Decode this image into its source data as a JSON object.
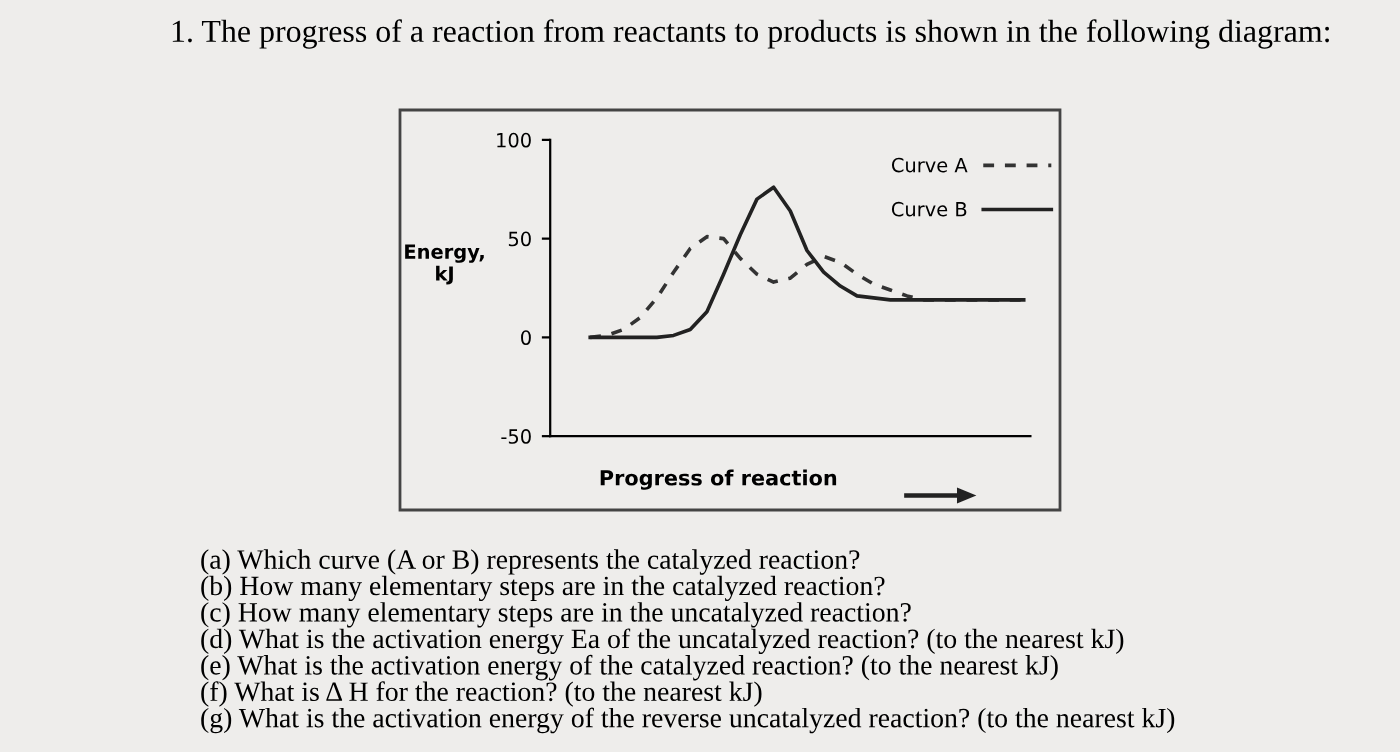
{
  "chart_data": {
    "type": "line",
    "title": "1. The progress of a reaction from reactants to products is shown in the following diagram:",
    "xlabel": "Progress of reaction",
    "ylabel": "Energy,\nkJ",
    "categories": [
      null,
      null,
      null,
      null,
      null,
      null,
      null,
      null,
      null,
      null,
      null,
      null,
      null,
      null,
      null,
      null,
      null,
      null,
      null,
      null,
      null,
      null,
      null,
      null,
      null,
      null,
      null
    ],
    "series": [
      {
        "name": "Curve A",
        "color": "#333333",
        "line_style": "dashed",
        "values": [
          0,
          1,
          4,
          10,
          20,
          33,
          45,
          51,
          50,
          40,
          32,
          28,
          30,
          37,
          41,
          38,
          32,
          27,
          24,
          21,
          19,
          19,
          19,
          19,
          19,
          19,
          19
        ]
      },
      {
        "name": "Curve B",
        "color": "#222222",
        "line_style": "solid",
        "values": [
          0,
          0,
          0,
          0,
          0,
          1,
          4,
          13,
          32,
          52,
          70,
          76,
          64,
          44,
          33,
          26,
          21,
          20,
          19,
          19,
          19,
          19,
          19,
          19,
          19,
          19,
          19
        ]
      }
    ],
    "ylim": [
      -50,
      100
    ],
    "yticks": [
      -50,
      0,
      50,
      100
    ],
    "tick_labels": "y",
    "grid": false,
    "legend": "top right",
    "marker": "none",
    "annotations": [
      "(a) Which curve (A or B) represents the catalyzed reaction?",
      "(b) How many elementary steps are in the catalyzed reaction?",
      "(c) How many elementary steps are in the uncatalyzed reaction?",
      "(d) What is the activation energy Ea of the uncatalyzed reaction? (to the nearest kJ)",
      "(e) What is the activation energy of the catalyzed reaction? (to the nearest kJ)",
      "(f) What is Δ H for the reaction? (to the nearest kJ)",
      "(g) What is the activation energy of the reverse uncatalyzed reaction? (to the nearest kJ)"
    ]
  }
}
